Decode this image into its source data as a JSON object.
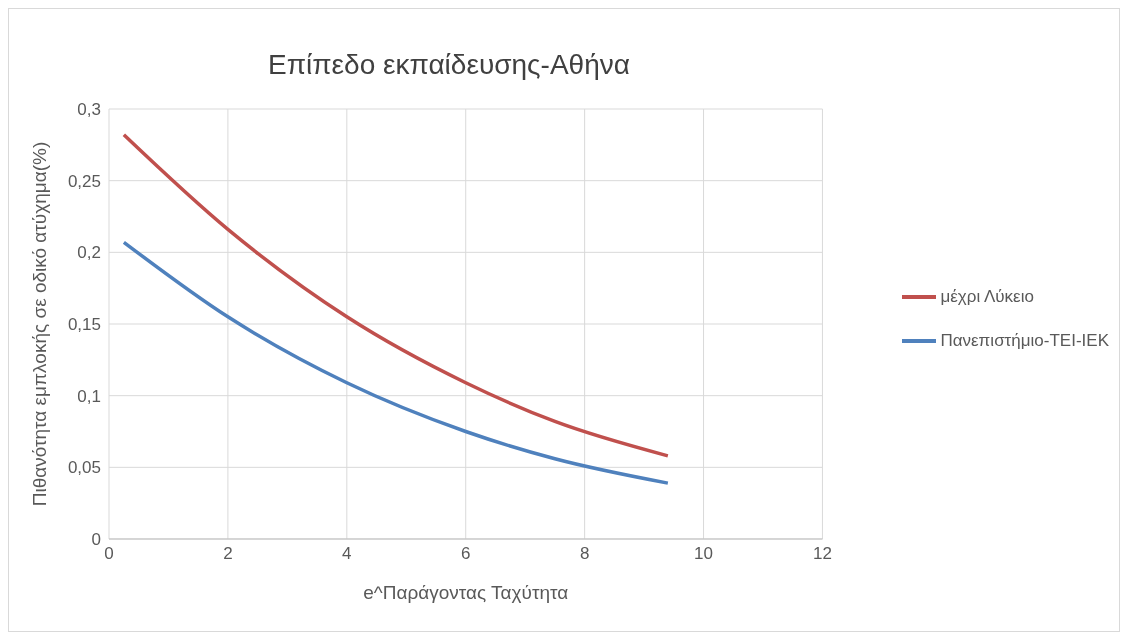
{
  "chart_data": {
    "type": "line",
    "title": "Επίπεδο εκπαίδευσης-Αθήνα",
    "xlabel": "e^Παράγοντας Ταχύτητα",
    "ylabel": "Πιθανότητα εμπλοκής σε οδικό ατύχημα(%)",
    "x": [
      0.25,
      2,
      4,
      6,
      7.5,
      9.4
    ],
    "series": [
      {
        "name": "μέχρι Λύκειο",
        "color": "#c0504d",
        "values": [
          0.282,
          0.216,
          0.155,
          0.109,
          0.082,
          0.058
        ]
      },
      {
        "name": "Πανεπιστήμιο-ΤΕΙ-ΙΕΚ",
        "color": "#4f81bd",
        "values": [
          0.207,
          0.155,
          0.109,
          0.075,
          0.056,
          0.039
        ]
      }
    ],
    "xlim": [
      0,
      12
    ],
    "xticks": [
      0,
      2,
      4,
      6,
      8,
      10,
      12
    ],
    "ylim": [
      0,
      0.3
    ],
    "yticks": [
      0,
      {
        "value": 0.05,
        "label": "0,05"
      },
      {
        "value": 0.1,
        "label": "0,1"
      },
      {
        "value": 0.15,
        "label": "0,15"
      },
      {
        "value": 0.2,
        "label": "0,2"
      },
      {
        "value": 0.25,
        "label": "0,25"
      },
      {
        "value": 0.3,
        "label": "0,3"
      }
    ],
    "grid": true,
    "legend": "right",
    "marker": "none",
    "line_style": "solid"
  }
}
